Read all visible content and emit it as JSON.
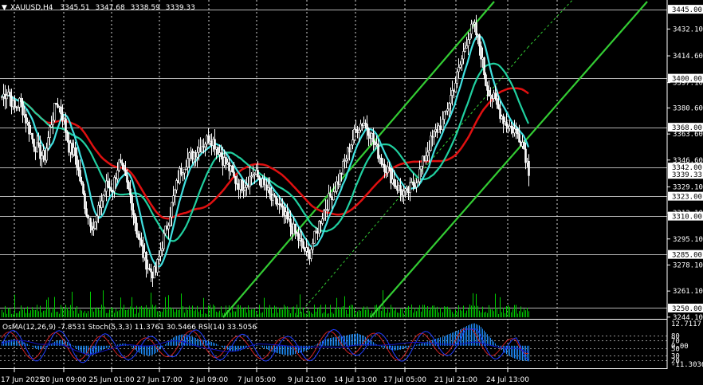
{
  "header": {
    "symbol": "XAUUSD,H4",
    "open": "3345.51",
    "high": "3347.68",
    "low": "3338.59",
    "close": "3339.33"
  },
  "indicator_header": "OsMA(12,26,9) -7.8531   Stoch(5,3,3) 11.3761 30.5466   RSI(14) 33.5056",
  "colors": {
    "background": "#000000",
    "candle": "#ffffff",
    "volume": "#00cc00",
    "ma_fast": "#40e0e0",
    "ma_mid": "#20d0a0",
    "ma_slow": "#e01010",
    "channel": "#33cc33",
    "osma": "#1e90ff",
    "stoch_main": "#1e3cff",
    "stoch_signal": "#cc2020",
    "rsi": "#1010c0"
  },
  "chart_data": {
    "type": "candlestick",
    "symbol": "XAUUSD",
    "timeframe": "H4",
    "ylim": [
      3244.0,
      3450.0
    ],
    "y_ticks": [
      "3432.10",
      "3414.60",
      "3397.10",
      "3380.60",
      "3363.60",
      "3346.60",
      "3329.10",
      "3312.10",
      "3295.10",
      "3278.10",
      "3261.10",
      "3244.10"
    ],
    "levels": [
      {
        "value": 3445.0,
        "label": "3445.00"
      },
      {
        "value": 3400.0,
        "label": "3400.00"
      },
      {
        "value": 3368.0,
        "label": "3368.00"
      },
      {
        "value": 3342.0,
        "label": "3342.00"
      },
      {
        "value": 3323.0,
        "label": "3323.00"
      },
      {
        "value": 3310.0,
        "label": "3310.00"
      },
      {
        "value": 3285.0,
        "label": "3285.00"
      },
      {
        "value": 3250.0,
        "label": "3250.00"
      }
    ],
    "current_price": "3339.33",
    "x_labels": [
      "17 Jun 2025",
      "20 Jun 09:00",
      "25 Jun 01:00",
      "27 Jun 17:00",
      "2 Jul 09:00",
      "7 Jul 05:00",
      "9 Jul 21:00",
      "14 Jul 13:00",
      "17 Jul 05:00",
      "21 Jul 21:00",
      "24 Jul 13:00"
    ],
    "close_path": [
      3388,
      3392,
      3380,
      3385,
      3372,
      3360,
      3352,
      3348,
      3370,
      3385,
      3375,
      3355,
      3350,
      3330,
      3310,
      3302,
      3318,
      3330,
      3328,
      3345,
      3335,
      3322,
      3300,
      3285,
      3275,
      3272,
      3290,
      3305,
      3322,
      3338,
      3346,
      3350,
      3354,
      3358,
      3362,
      3356,
      3348,
      3342,
      3334,
      3330,
      3332,
      3338,
      3335,
      3328,
      3320,
      3318,
      3310,
      3304,
      3298,
      3290,
      3284,
      3296,
      3308,
      3318,
      3326,
      3334,
      3346,
      3358,
      3368,
      3372,
      3366,
      3355,
      3346,
      3340,
      3332,
      3327,
      3324,
      3330,
      3336,
      3348,
      3358,
      3366,
      3372,
      3386,
      3398,
      3412,
      3428,
      3434,
      3420,
      3396,
      3388,
      3380,
      3372,
      3368,
      3365,
      3358,
      3340
    ],
    "osma_values": [
      2.1,
      2.8,
      3.2,
      2.5,
      1.2,
      -0.5,
      -2.0,
      -1.2,
      1.0,
      2.6,
      3.0,
      1.5,
      -1.0,
      -3.2,
      -5.0,
      -4.5,
      -2.6,
      -1.2,
      -0.5,
      0.8,
      1.2,
      -0.3,
      -2.8,
      -4.5,
      -5.2,
      -4.0,
      -1.5,
      1.8,
      4.2,
      5.5,
      5.8,
      4.6,
      3.5,
      2.8,
      2.2,
      1.0,
      -0.8,
      -2.2,
      -3.0,
      -2.4,
      -1.0,
      0.4,
      0.2,
      -1.5,
      -3.0,
      -3.8,
      -4.6,
      -4.8,
      -4.0,
      -3.2,
      -2.0,
      0.2,
      2.0,
      3.5,
      4.2,
      4.6,
      5.0,
      5.8,
      6.2,
      5.0,
      3.2,
      1.0,
      -0.8,
      -1.6,
      -2.4,
      -2.0,
      -1.2,
      -0.2,
      0.8,
      1.6,
      2.6,
      3.6,
      4.6,
      6.0,
      7.2,
      8.6,
      10.2,
      11.4,
      10.0,
      6.5,
      3.0,
      -0.5,
      -3.5,
      -5.5,
      -6.8,
      -7.5,
      -7.85
    ],
    "osma_ylim": [
      -11.3036,
      12.7117
    ],
    "osma_labels": [
      "12.7117",
      "0.00",
      "-11.3036"
    ],
    "stoch_levels": [
      "80",
      "70",
      "50",
      "30",
      "20"
    ],
    "stoch_main": 11.3761,
    "stoch_signal": 30.5466,
    "rsi_value": 33.5056
  }
}
